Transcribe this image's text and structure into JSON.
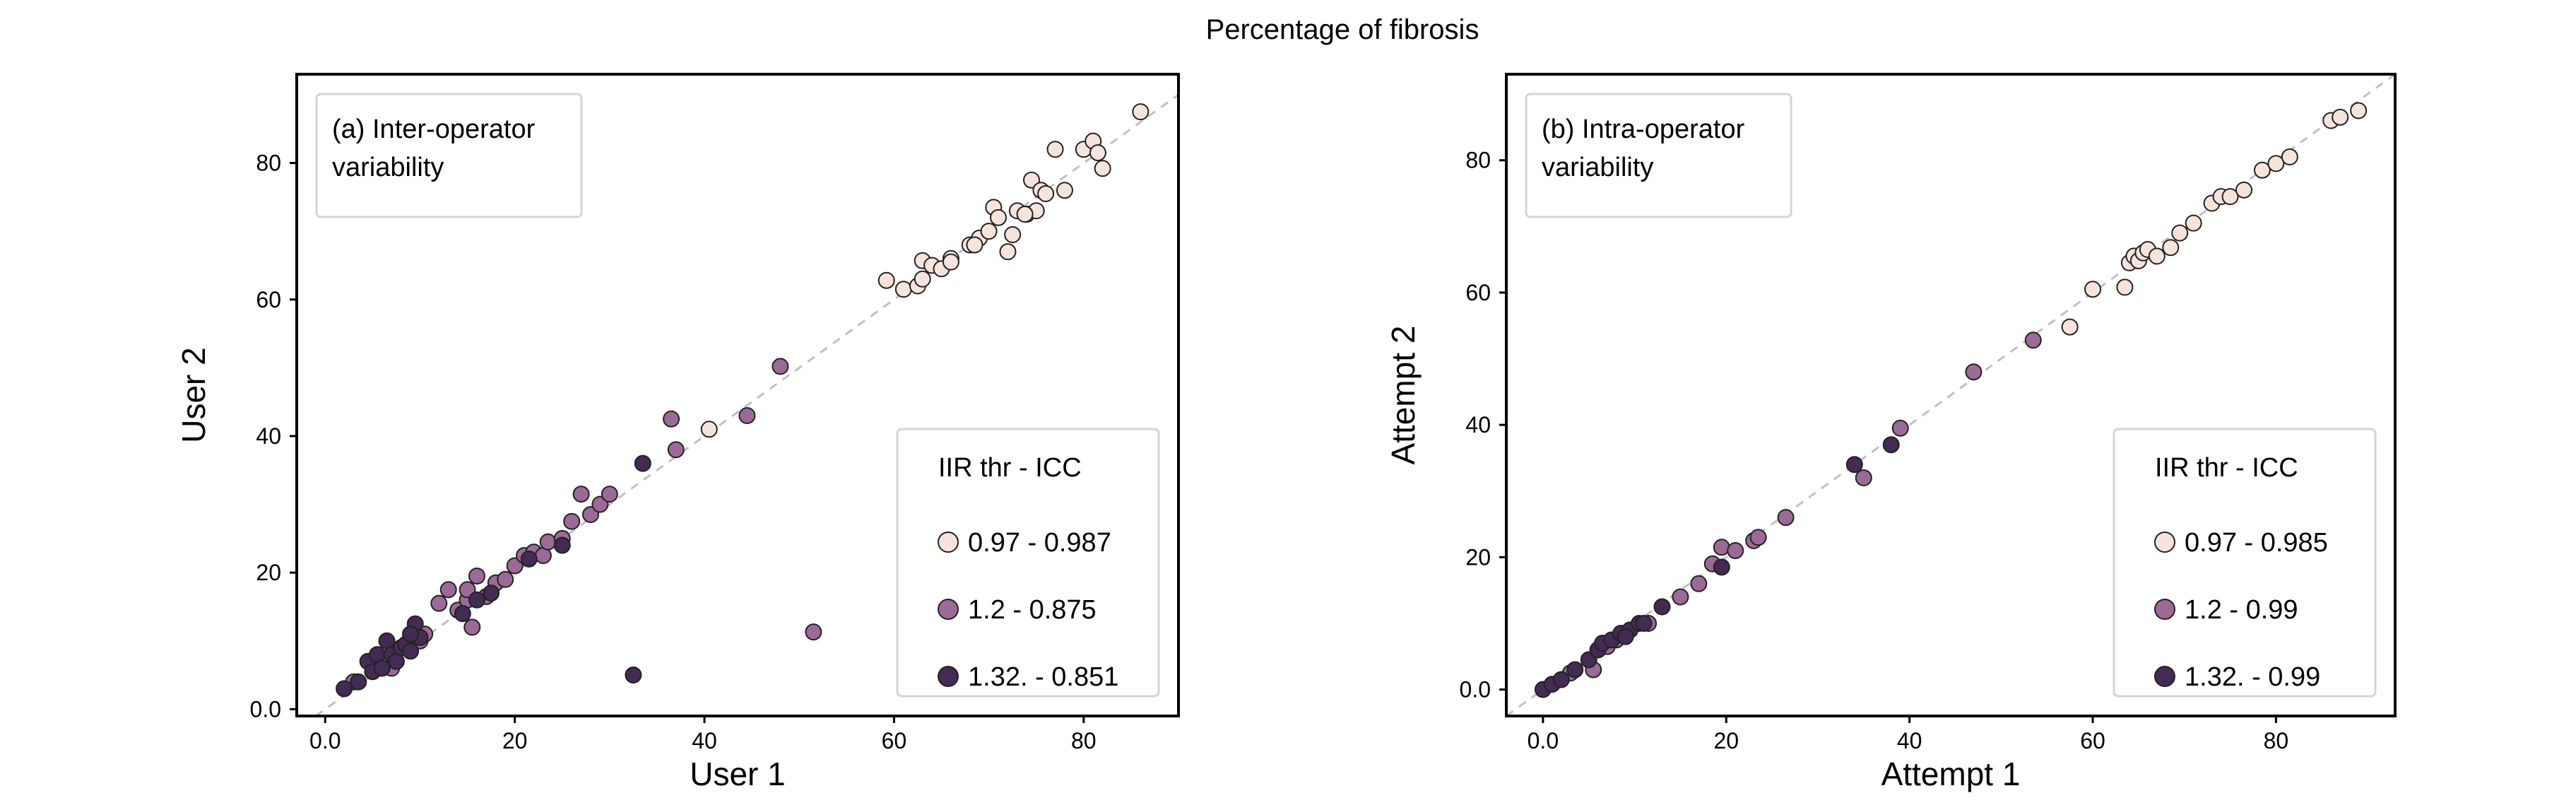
{
  "figure_title": "Percentage of fibrosis",
  "colors": {
    "low": "#f6e4dc",
    "mid": "#9c6a96",
    "high": "#432b54",
    "diagonal": "#c2bec6"
  },
  "chart_data": [
    {
      "type": "scatter",
      "annotation": [
        "(a) Inter-operator",
        "variability"
      ],
      "xlabel": "User 1",
      "ylabel": "User 2",
      "xlim": [
        -3,
        90
      ],
      "ylim": [
        -1,
        93
      ],
      "xticks": [
        0,
        20,
        40,
        60,
        80
      ],
      "xtick_labels": [
        "0.0",
        "20",
        "40",
        "60",
        "80"
      ],
      "yticks": [
        0,
        20,
        40,
        60,
        80
      ],
      "ytick_labels": [
        "0.0",
        "20",
        "40",
        "60",
        "80"
      ],
      "legend": {
        "title": "IIR thr -  ICC",
        "position": "lower-right",
        "entries": [
          {
            "label": "0.97  - 0.987",
            "color": "#f6e4dc"
          },
          {
            "label": "1.2     - 0.875",
            "color": "#9c6a96"
          },
          {
            "label": "1.32. - 0.851",
            "color": "#432b54"
          }
        ]
      },
      "series": [
        {
          "name": "0.97  - 0.987",
          "color": "#f6e4dc",
          "x": [
            40.5,
            59.2,
            61.0,
            62.5,
            63.0,
            64.0,
            65.0,
            66.0,
            68.0,
            69.0,
            70.0,
            70.5,
            71.0,
            72.0,
            72.5,
            73.0,
            74.0,
            74.5,
            75.0,
            75.5,
            76.0,
            77.0,
            78.0,
            80.0,
            81.0,
            81.5,
            82.0,
            86.0,
            63.0,
            66.0,
            68.5,
            73.8
          ],
          "y": [
            41.0,
            62.8,
            61.5,
            62.0,
            65.7,
            65.0,
            64.5,
            66.0,
            68.0,
            69.0,
            70.0,
            73.5,
            72.0,
            67.0,
            69.5,
            73.0,
            72.5,
            77.5,
            73.0,
            76.0,
            75.5,
            82.0,
            76.0,
            82.0,
            83.2,
            81.5,
            79.2,
            87.5,
            63.0,
            65.5,
            68.0,
            72.5
          ]
        },
        {
          "name": "1.2     - 0.875",
          "color": "#9c6a96",
          "x": [
            3.0,
            7.0,
            10.0,
            12.0,
            13.0,
            14.0,
            15.0,
            15.5,
            16.0,
            17.0,
            18.0,
            19.0,
            20.0,
            21.0,
            22.0,
            23.0,
            23.5,
            25.0,
            26.0,
            27.0,
            28.0,
            29.0,
            30.0,
            36.5,
            37.0,
            44.5,
            48.0,
            51.5,
            10.5,
            15.0
          ],
          "y": [
            4.0,
            6.0,
            10.0,
            15.5,
            17.5,
            14.5,
            16.0,
            12.0,
            19.5,
            16.5,
            18.5,
            19.0,
            21.0,
            22.5,
            23.0,
            22.5,
            24.5,
            25.0,
            27.5,
            31.5,
            28.5,
            30.0,
            31.5,
            42.5,
            38.0,
            43.0,
            50.2,
            11.3,
            11.0,
            17.5
          ]
        },
        {
          "name": "1.32. - 0.851",
          "color": "#432b54",
          "x": [
            2.0,
            3.5,
            4.5,
            5.0,
            5.5,
            6.0,
            6.5,
            7.0,
            7.5,
            8.0,
            8.5,
            9.0,
            9.5,
            10.0,
            14.5,
            16.0,
            17.5,
            21.5,
            25.0,
            32.5,
            33.5,
            9.0
          ],
          "y": [
            3.0,
            4.0,
            7.0,
            5.5,
            8.0,
            6.0,
            10.0,
            8.0,
            7.0,
            9.0,
            9.5,
            8.5,
            12.5,
            10.5,
            14.0,
            16.0,
            17.0,
            22.0,
            24.0,
            5.0,
            36.0,
            11.0
          ]
        }
      ]
    },
    {
      "type": "scatter",
      "annotation": [
        "(b) Intra-operator",
        "variability"
      ],
      "xlabel": "Attempt 1",
      "ylabel": "Attempt 2",
      "xlim": [
        -4,
        93
      ],
      "ylim": [
        -4,
        93
      ],
      "xticks": [
        0,
        20,
        40,
        60,
        80
      ],
      "xtick_labels": [
        "0.0",
        "20",
        "40",
        "60",
        "80"
      ],
      "yticks": [
        0,
        20,
        40,
        60,
        80
      ],
      "ytick_labels": [
        "0.0",
        "20",
        "40",
        "60",
        "80"
      ],
      "legend": {
        "title": "IIR thr -  ICC",
        "position": "lower-right",
        "entries": [
          {
            "label": "0.97  - 0.985",
            "color": "#f6e4dc"
          },
          {
            "label": "1.2     - 0.99",
            "color": "#9c6a96"
          },
          {
            "label": "1.32. - 0.99",
            "color": "#432b54"
          }
        ]
      },
      "series": [
        {
          "name": "0.97  - 0.985",
          "color": "#f6e4dc",
          "x": [
            57.5,
            60.0,
            63.5,
            64.0,
            64.5,
            65.0,
            65.5,
            66.0,
            67.0,
            68.5,
            69.5,
            71.0,
            73.0,
            74.0,
            75.0,
            76.5,
            78.5,
            80.0,
            81.5,
            86.0,
            87.0,
            89.0
          ],
          "y": [
            54.8,
            60.5,
            60.8,
            64.5,
            65.5,
            64.8,
            66.0,
            66.5,
            65.5,
            66.8,
            69.0,
            70.5,
            73.5,
            74.5,
            74.5,
            75.5,
            78.5,
            79.5,
            80.5,
            86.0,
            86.5,
            87.5
          ]
        },
        {
          "name": "1.2     - 0.99",
          "color": "#9c6a96",
          "x": [
            3.0,
            5.5,
            6.0,
            7.0,
            8.0,
            9.0,
            11.5,
            15.0,
            17.0,
            18.5,
            19.5,
            21.0,
            23.0,
            26.5,
            35.0,
            47.0,
            53.5,
            39.0,
            23.5
          ],
          "y": [
            2.5,
            3.0,
            6.0,
            6.5,
            7.5,
            8.0,
            10.0,
            14.0,
            16.0,
            19.0,
            21.5,
            21.0,
            22.5,
            26.0,
            32.0,
            48.0,
            52.8,
            39.5,
            23.0
          ]
        },
        {
          "name": "1.32. - 0.99",
          "color": "#432b54",
          "x": [
            0.0,
            1.0,
            2.0,
            3.5,
            5.0,
            6.0,
            6.5,
            7.5,
            8.5,
            9.5,
            10.5,
            11.0,
            13.0,
            19.5,
            34.0,
            38.0,
            9.0
          ],
          "y": [
            0.0,
            0.8,
            1.5,
            3.0,
            4.5,
            6.0,
            7.0,
            7.5,
            8.5,
            9.0,
            10.0,
            10.0,
            12.5,
            18.5,
            34.0,
            37.0,
            8.0
          ]
        }
      ]
    }
  ]
}
